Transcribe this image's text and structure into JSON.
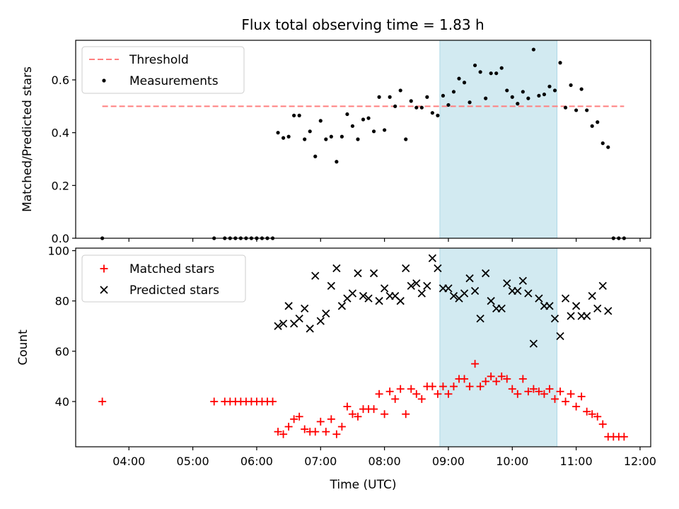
{
  "figure": {
    "title": "Flux total observing time = 1.83 h",
    "xlabel": "Time (UTC)",
    "shade_color": "#add8e6",
    "shade_range": [
      "08:52",
      "10:42"
    ]
  },
  "chart_data": [
    {
      "type": "scatter",
      "ylabel": "Matched/Predicted stars",
      "ylim": [
        0,
        0.75
      ],
      "yticks": [
        0.0,
        0.2,
        0.4,
        0.6
      ],
      "ytick_labels": [
        "0.0",
        "0.2",
        "0.4",
        "0.6"
      ],
      "legend_position": "upper-left",
      "threshold": {
        "name": "Threshold",
        "value": 0.5,
        "x_range": [
          "03:35",
          "11:45"
        ],
        "color": "#ff7f7f"
      },
      "series": [
        {
          "name": "Measurements",
          "color": "#000000",
          "marker": "dot",
          "points": [
            [
              "03:35",
              0.0
            ],
            [
              "05:20",
              0.0
            ],
            [
              "05:30",
              0.0
            ],
            [
              "05:35",
              0.0
            ],
            [
              "05:40",
              0.0
            ],
            [
              "05:45",
              0.0
            ],
            [
              "05:50",
              0.0
            ],
            [
              "05:55",
              0.0
            ],
            [
              "06:00",
              0.0
            ],
            [
              "06:05",
              0.0
            ],
            [
              "06:10",
              0.0
            ],
            [
              "06:15",
              0.0
            ],
            [
              "06:20",
              0.4
            ],
            [
              "06:25",
              0.38
            ],
            [
              "06:30",
              0.385
            ],
            [
              "06:35",
              0.465
            ],
            [
              "06:40",
              0.465
            ],
            [
              "06:45",
              0.375
            ],
            [
              "06:50",
              0.405
            ],
            [
              "06:55",
              0.31
            ],
            [
              "07:00",
              0.445
            ],
            [
              "07:05",
              0.375
            ],
            [
              "07:10",
              0.385
            ],
            [
              "07:15",
              0.29
            ],
            [
              "07:20",
              0.385
            ],
            [
              "07:25",
              0.47
            ],
            [
              "07:30",
              0.425
            ],
            [
              "07:35",
              0.375
            ],
            [
              "07:40",
              0.45
            ],
            [
              "07:45",
              0.455
            ],
            [
              "07:50",
              0.405
            ],
            [
              "07:55",
              0.535
            ],
            [
              "08:00",
              0.41
            ],
            [
              "08:05",
              0.535
            ],
            [
              "08:10",
              0.5
            ],
            [
              "08:15",
              0.56
            ],
            [
              "08:20",
              0.375
            ],
            [
              "08:25",
              0.52
            ],
            [
              "08:30",
              0.495
            ],
            [
              "08:35",
              0.495
            ],
            [
              "08:40",
              0.535
            ],
            [
              "08:45",
              0.475
            ],
            [
              "08:50",
              0.465
            ],
            [
              "08:55",
              0.54
            ],
            [
              "09:00",
              0.505
            ],
            [
              "09:05",
              0.555
            ],
            [
              "09:10",
              0.605
            ],
            [
              "09:15",
              0.59
            ],
            [
              "09:20",
              0.515
            ],
            [
              "09:25",
              0.655
            ],
            [
              "09:30",
              0.63
            ],
            [
              "09:35",
              0.53
            ],
            [
              "09:40",
              0.625
            ],
            [
              "09:45",
              0.625
            ],
            [
              "09:50",
              0.645
            ],
            [
              "09:55",
              0.56
            ],
            [
              "10:00",
              0.535
            ],
            [
              "10:05",
              0.51
            ],
            [
              "10:10",
              0.555
            ],
            [
              "10:15",
              0.53
            ],
            [
              "10:20",
              0.715
            ],
            [
              "10:25",
              0.54
            ],
            [
              "10:30",
              0.545
            ],
            [
              "10:35",
              0.575
            ],
            [
              "10:40",
              0.56
            ],
            [
              "10:45",
              0.665
            ],
            [
              "10:50",
              0.495
            ],
            [
              "10:55",
              0.58
            ],
            [
              "11:00",
              0.485
            ],
            [
              "11:05",
              0.565
            ],
            [
              "11:10",
              0.485
            ],
            [
              "11:15",
              0.425
            ],
            [
              "11:20",
              0.44
            ],
            [
              "11:25",
              0.36
            ],
            [
              "11:30",
              0.345
            ],
            [
              "11:35",
              0.0
            ],
            [
              "11:40",
              0.0
            ],
            [
              "11:45",
              0.0
            ]
          ]
        }
      ]
    },
    {
      "type": "scatter",
      "ylabel": "Count",
      "ylim": [
        22,
        101
      ],
      "yticks": [
        40,
        60,
        80,
        100
      ],
      "ytick_labels": [
        "40",
        "60",
        "80",
        "100"
      ],
      "xticks": [
        "04:00",
        "05:00",
        "06:00",
        "07:00",
        "08:00",
        "09:00",
        "10:00",
        "11:00",
        "12:00"
      ],
      "xlim": [
        "03:10",
        "12:10"
      ],
      "legend_position": "upper-left",
      "series": [
        {
          "name": "Matched stars",
          "color": "#ff0000",
          "marker": "plus",
          "points": [
            [
              "03:35",
              40
            ],
            [
              "05:20",
              40
            ],
            [
              "05:30",
              40
            ],
            [
              "05:35",
              40
            ],
            [
              "05:40",
              40
            ],
            [
              "05:45",
              40
            ],
            [
              "05:50",
              40
            ],
            [
              "05:55",
              40
            ],
            [
              "06:00",
              40
            ],
            [
              "06:05",
              40
            ],
            [
              "06:10",
              40
            ],
            [
              "06:15",
              40
            ],
            [
              "06:20",
              28
            ],
            [
              "06:25",
              27
            ],
            [
              "06:30",
              30
            ],
            [
              "06:35",
              33
            ],
            [
              "06:40",
              34
            ],
            [
              "06:45",
              29
            ],
            [
              "06:50",
              28
            ],
            [
              "06:55",
              28
            ],
            [
              "07:00",
              32
            ],
            [
              "07:05",
              28
            ],
            [
              "07:10",
              33
            ],
            [
              "07:15",
              27
            ],
            [
              "07:20",
              30
            ],
            [
              "07:25",
              38
            ],
            [
              "07:30",
              35
            ],
            [
              "07:35",
              34
            ],
            [
              "07:40",
              37
            ],
            [
              "07:45",
              37
            ],
            [
              "07:50",
              37
            ],
            [
              "07:55",
              43
            ],
            [
              "08:00",
              35
            ],
            [
              "08:05",
              44
            ],
            [
              "08:10",
              41
            ],
            [
              "08:15",
              45
            ],
            [
              "08:20",
              35
            ],
            [
              "08:25",
              45
            ],
            [
              "08:30",
              43
            ],
            [
              "08:35",
              41
            ],
            [
              "08:40",
              46
            ],
            [
              "08:45",
              46
            ],
            [
              "08:50",
              43
            ],
            [
              "08:55",
              46
            ],
            [
              "09:00",
              43
            ],
            [
              "09:05",
              46
            ],
            [
              "09:10",
              49
            ],
            [
              "09:15",
              49
            ],
            [
              "09:20",
              46
            ],
            [
              "09:25",
              55
            ],
            [
              "09:30",
              46
            ],
            [
              "09:35",
              48
            ],
            [
              "09:40",
              50
            ],
            [
              "09:45",
              48
            ],
            [
              "09:50",
              50
            ],
            [
              "09:55",
              49
            ],
            [
              "10:00",
              45
            ],
            [
              "10:05",
              43
            ],
            [
              "10:10",
              49
            ],
            [
              "10:15",
              44
            ],
            [
              "10:20",
              45
            ],
            [
              "10:25",
              44
            ],
            [
              "10:30",
              43
            ],
            [
              "10:35",
              45
            ],
            [
              "10:40",
              41
            ],
            [
              "10:45",
              44
            ],
            [
              "10:50",
              40
            ],
            [
              "10:55",
              43
            ],
            [
              "11:00",
              38
            ],
            [
              "11:05",
              42
            ],
            [
              "11:10",
              36
            ],
            [
              "11:15",
              35
            ],
            [
              "11:20",
              34
            ],
            [
              "11:25",
              31
            ],
            [
              "11:30",
              26
            ],
            [
              "11:35",
              26
            ],
            [
              "11:40",
              26
            ],
            [
              "11:45",
              26
            ]
          ]
        },
        {
          "name": "Predicted stars",
          "color": "#000000",
          "marker": "x",
          "points": [
            [
              "06:20",
              70
            ],
            [
              "06:25",
              71
            ],
            [
              "06:30",
              78
            ],
            [
              "06:35",
              71
            ],
            [
              "06:40",
              73
            ],
            [
              "06:45",
              77
            ],
            [
              "06:50",
              69
            ],
            [
              "06:55",
              90
            ],
            [
              "07:00",
              72
            ],
            [
              "07:05",
              75
            ],
            [
              "07:10",
              86
            ],
            [
              "07:15",
              93
            ],
            [
              "07:20",
              78
            ],
            [
              "07:25",
              81
            ],
            [
              "07:30",
              83
            ],
            [
              "07:35",
              91
            ],
            [
              "07:40",
              82
            ],
            [
              "07:45",
              81
            ],
            [
              "07:50",
              91
            ],
            [
              "07:55",
              80
            ],
            [
              "08:00",
              85
            ],
            [
              "08:05",
              82
            ],
            [
              "08:10",
              82
            ],
            [
              "08:15",
              80
            ],
            [
              "08:20",
              93
            ],
            [
              "08:25",
              86
            ],
            [
              "08:30",
              87
            ],
            [
              "08:35",
              83
            ],
            [
              "08:40",
              86
            ],
            [
              "08:45",
              97
            ],
            [
              "08:50",
              93
            ],
            [
              "08:55",
              85
            ],
            [
              "09:00",
              85
            ],
            [
              "09:05",
              82
            ],
            [
              "09:10",
              81
            ],
            [
              "09:15",
              83
            ],
            [
              "09:20",
              89
            ],
            [
              "09:25",
              84
            ],
            [
              "09:30",
              73
            ],
            [
              "09:35",
              91
            ],
            [
              "09:40",
              80
            ],
            [
              "09:45",
              77
            ],
            [
              "09:50",
              77
            ],
            [
              "09:55",
              87
            ],
            [
              "10:00",
              84
            ],
            [
              "10:05",
              84
            ],
            [
              "10:10",
              88
            ],
            [
              "10:15",
              83
            ],
            [
              "10:20",
              63
            ],
            [
              "10:25",
              81
            ],
            [
              "10:30",
              78
            ],
            [
              "10:35",
              78
            ],
            [
              "10:40",
              73
            ],
            [
              "10:45",
              66
            ],
            [
              "10:50",
              81
            ],
            [
              "10:55",
              74
            ],
            [
              "11:00",
              78
            ],
            [
              "11:05",
              74
            ],
            [
              "11:10",
              74
            ],
            [
              "11:15",
              82
            ],
            [
              "11:20",
              77
            ],
            [
              "11:25",
              86
            ],
            [
              "11:30",
              76
            ]
          ]
        }
      ]
    }
  ]
}
